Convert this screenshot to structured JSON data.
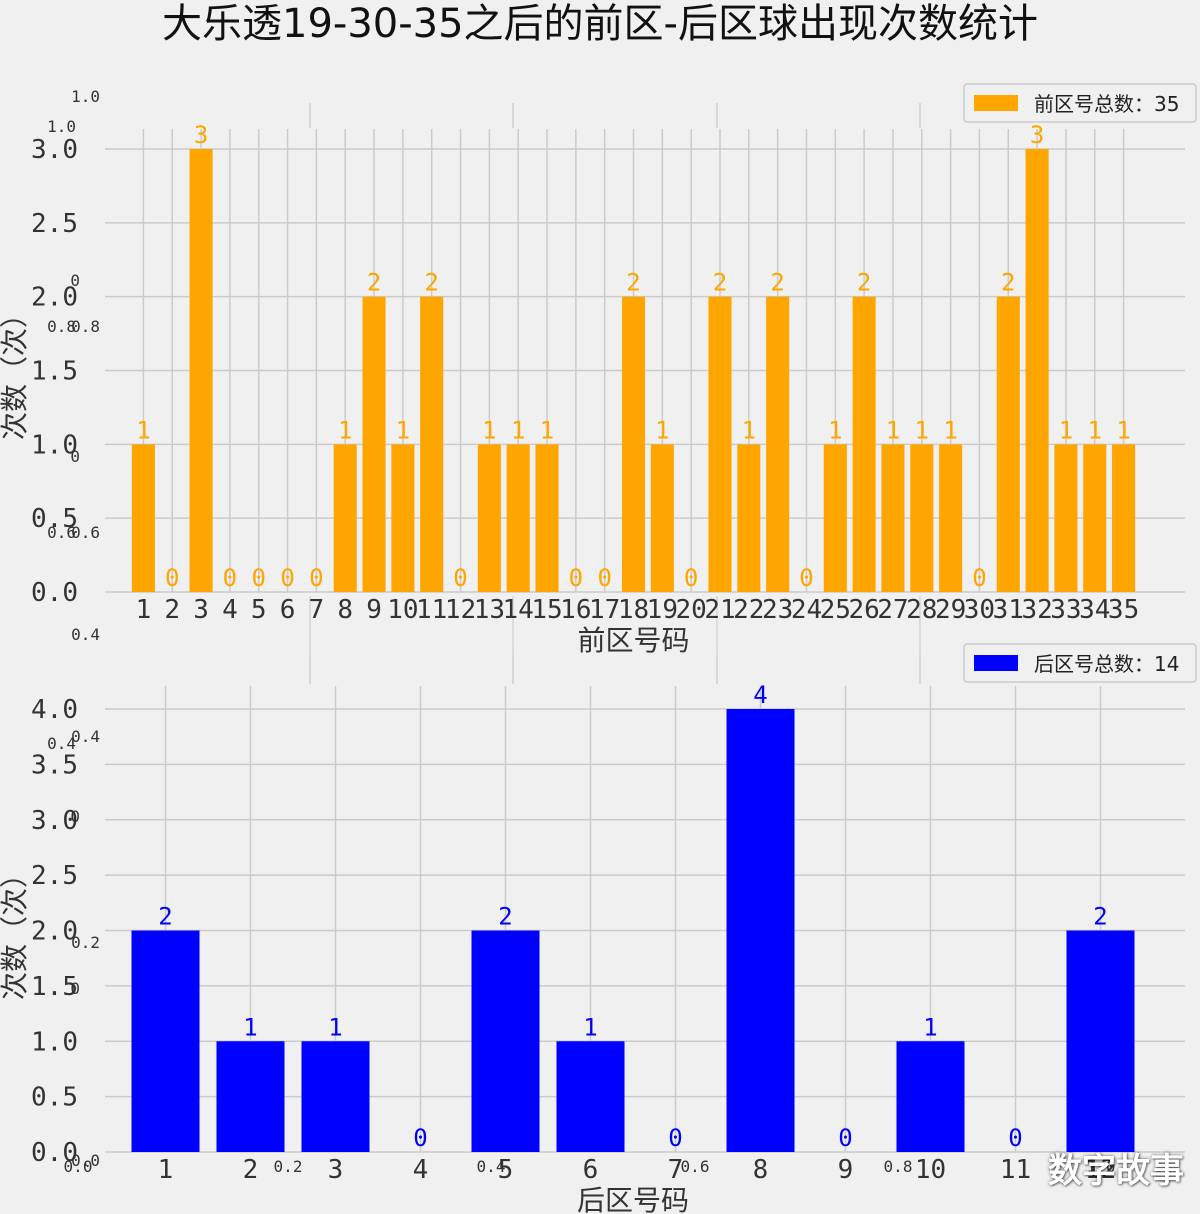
{
  "title": "大乐透19-30-35之后的前区-后区球出现次数统计",
  "watermark": "数字故事",
  "chart_data": [
    {
      "type": "bar",
      "categories": [
        "1",
        "2",
        "3",
        "4",
        "5",
        "6",
        "7",
        "8",
        "9",
        "10",
        "11",
        "12",
        "13",
        "14",
        "15",
        "16",
        "17",
        "18",
        "19",
        "20",
        "21",
        "22",
        "23",
        "24",
        "25",
        "26",
        "27",
        "28",
        "29",
        "30",
        "31",
        "32",
        "33",
        "34",
        "35"
      ],
      "values": [
        1,
        0,
        3,
        0,
        0,
        0,
        0,
        1,
        2,
        1,
        2,
        0,
        1,
        1,
        1,
        0,
        0,
        2,
        1,
        0,
        2,
        1,
        2,
        0,
        1,
        2,
        1,
        1,
        1,
        0,
        2,
        3,
        1,
        1,
        1
      ],
      "xlabel": "前区号码",
      "ylabel": "次数（次）",
      "ylim": [
        0,
        3.0
      ],
      "yticks": [
        "0.0",
        "0.5",
        "1.0",
        "1.5",
        "2.0",
        "2.5",
        "3.0"
      ],
      "legend": "前区号总数：35",
      "legend_position": "top-right",
      "color": "#ffa500",
      "grid": true
    },
    {
      "type": "bar",
      "categories": [
        "1",
        "2",
        "3",
        "4",
        "5",
        "6",
        "7",
        "8",
        "9",
        "10",
        "11",
        "12"
      ],
      "values": [
        2,
        1,
        1,
        0,
        2,
        1,
        0,
        4,
        0,
        1,
        0,
        2
      ],
      "xlabel": "后区号码",
      "ylabel": "次数（次）",
      "ylim": [
        0,
        4.0
      ],
      "yticks": [
        "0.0",
        "0.5",
        "1.0",
        "1.5",
        "2.0",
        "2.5",
        "3.0",
        "3.5",
        "4.0"
      ],
      "legend": "后区号总数：14",
      "legend_position": "top-right",
      "color": "#0000ff",
      "grid": true
    }
  ],
  "background_axes": {
    "yticks": [
      "0.0",
      "0.2",
      "0.4",
      "0.6",
      "0.8",
      "1.0"
    ],
    "xticks": [
      "0.0",
      "0.2",
      "0.4",
      "0.6",
      "0.8",
      "1.0"
    ],
    "top_axis_yticks": [
      "0.4",
      "0.6",
      "0.8",
      "1.0"
    ],
    "top_axis_stray_labels": [
      "0",
      "0",
      "1.0"
    ],
    "bottom_axis_yticks": [
      "0.2",
      "0.4"
    ],
    "bottom_axis_stray_labels": [
      "0",
      "0"
    ]
  }
}
